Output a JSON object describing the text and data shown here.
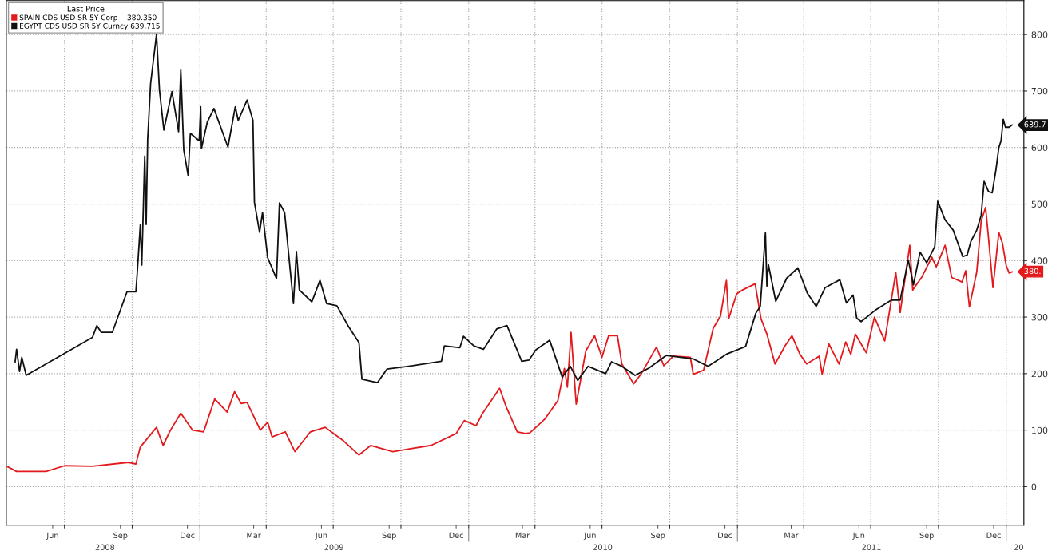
{
  "chart_data": {
    "type": "line",
    "legend_title": "Last Price",
    "legend": "top left",
    "grid": true,
    "line_style": "solid",
    "marker": "none",
    "ylim": [
      -68,
      860
    ],
    "yticks": [
      0,
      100,
      200,
      300,
      400,
      500,
      600,
      700,
      800
    ],
    "xlim": [
      "2008-04-13",
      "2012-01-25"
    ],
    "xticks": [
      {
        "value": "2008-06-15",
        "label": "Jun"
      },
      {
        "value": "2008-09-15",
        "label": "Sep"
      },
      {
        "value": "2008-12-15",
        "label": "Dec"
      },
      {
        "value": "2009-03-15",
        "label": "Mar"
      },
      {
        "value": "2009-06-15",
        "label": "Jun"
      },
      {
        "value": "2009-09-15",
        "label": "Sep"
      },
      {
        "value": "2009-12-15",
        "label": "Dec"
      },
      {
        "value": "2010-03-15",
        "label": "Mar"
      },
      {
        "value": "2010-06-15",
        "label": "Jun"
      },
      {
        "value": "2010-09-15",
        "label": "Sep"
      },
      {
        "value": "2010-12-15",
        "label": "Dec"
      },
      {
        "value": "2011-03-15",
        "label": "Mar"
      },
      {
        "value": "2011-06-15",
        "label": "Jun"
      },
      {
        "value": "2011-09-15",
        "label": "Sep"
      },
      {
        "value": "2011-12-15",
        "label": "Dec"
      },
      {
        "value": "2008-07-01",
        "label": null
      },
      {
        "value": "2008-10-01",
        "label": null
      },
      {
        "value": "2009-01-01",
        "label": null
      },
      {
        "value": "2009-04-01",
        "label": null
      },
      {
        "value": "2009-07-01",
        "label": null
      },
      {
        "value": "2009-10-01",
        "label": null
      },
      {
        "value": "2010-01-01",
        "label": null
      },
      {
        "value": "2010-04-01",
        "label": null
      },
      {
        "value": "2010-07-01",
        "label": null
      },
      {
        "value": "2010-10-01",
        "label": null
      },
      {
        "value": "2011-01-01",
        "label": null
      },
      {
        "value": "2011-04-01",
        "label": null
      },
      {
        "value": "2011-07-01",
        "label": null
      },
      {
        "value": "2011-10-01",
        "label": null
      },
      {
        "value": "2012-01-01",
        "label": null
      }
    ],
    "x2lim": [
      "2008-04-13",
      "2012-01-25"
    ],
    "x2ticks": [
      {
        "value": "2008-08-25",
        "label": "2008"
      },
      {
        "value": "2009-07-02",
        "label": "2009"
      },
      {
        "value": "2010-07-02",
        "label": "2010"
      },
      {
        "value": "2011-07-02",
        "label": "2011"
      },
      {
        "value": "2012-01-18",
        "label": "20"
      },
      {
        "value": "2009-01-01",
        "label": null
      },
      {
        "value": "2010-01-01",
        "label": null
      },
      {
        "value": "2011-01-01",
        "label": null
      },
      {
        "value": "2012-01-01",
        "label": null
      }
    ],
    "annotations": [
      {
        "text": "380.",
        "x": "2012-01-09",
        "y": 380.35
      },
      {
        "text": "639.7",
        "x": "2012-01-09",
        "y": 639.715
      }
    ],
    "series": [
      {
        "name": "SPAIN CDS USD SR 5Y Corp    380.350",
        "color": "#e3191c",
        "x": [
          "2008-04-15",
          "2008-04-27",
          "2008-05-10",
          "2008-06-06",
          "2008-07-01",
          "2008-08-08",
          "2008-09-26",
          "2008-10-06",
          "2008-10-12",
          "2008-11-03",
          "2008-11-12",
          "2008-11-22",
          "2008-12-06",
          "2008-12-22",
          "2009-01-06",
          "2009-01-21",
          "2009-02-07",
          "2009-02-17",
          "2009-02-26",
          "2009-03-06",
          "2009-03-24",
          "2009-04-03",
          "2009-04-09",
          "2009-04-27",
          "2009-05-10",
          "2009-05-31",
          "2009-06-20",
          "2009-07-15",
          "2009-08-05",
          "2009-08-21",
          "2009-09-20",
          "2009-11-11",
          "2009-12-15",
          "2009-12-26",
          "2010-01-11",
          "2010-01-20",
          "2010-02-12",
          "2010-02-21",
          "2010-03-08",
          "2010-03-19",
          "2010-03-25",
          "2010-04-14",
          "2010-05-02",
          "2010-05-11",
          "2010-05-15",
          "2010-05-20",
          "2010-05-27",
          "2010-06-09",
          "2010-06-21",
          "2010-07-01",
          "2010-07-10",
          "2010-07-22",
          "2010-07-28",
          "2010-08-13",
          "2010-08-23",
          "2010-09-13",
          "2010-09-23",
          "2010-10-06",
          "2010-10-29",
          "2010-11-02",
          "2010-11-16",
          "2010-11-29",
          "2010-12-09",
          "2010-12-17",
          "2010-12-20",
          "2010-12-31",
          "2011-01-08",
          "2011-01-25",
          "2011-02-02",
          "2011-02-10",
          "2011-02-21",
          "2011-03-07",
          "2011-03-16",
          "2011-03-27",
          "2011-04-05",
          "2011-04-22",
          "2011-04-26",
          "2011-05-05",
          "2011-05-19",
          "2011-05-28",
          "2011-06-04",
          "2011-06-10",
          "2011-06-25",
          "2011-07-06",
          "2011-07-20",
          "2011-08-04",
          "2011-08-10",
          "2011-08-23",
          "2011-08-27",
          "2011-09-08",
          "2011-09-22",
          "2011-09-28",
          "2011-10-10",
          "2011-10-19",
          "2011-11-02",
          "2011-11-07",
          "2011-11-12",
          "2011-11-22",
          "2011-11-28",
          "2011-12-04",
          "2011-12-08",
          "2011-12-14",
          "2011-12-22",
          "2011-12-27",
          "2012-01-01",
          "2012-01-05",
          "2012-01-09"
        ],
        "values": [
          35,
          27,
          27,
          27,
          37,
          36,
          43,
          40,
          70,
          105,
          73,
          100,
          130,
          100,
          97,
          155,
          132,
          168,
          147,
          149,
          100,
          114,
          88,
          97,
          62,
          97,
          105,
          81,
          56,
          73,
          62,
          73,
          94,
          117,
          108,
          130,
          174,
          141,
          97,
          94,
          95,
          119,
          152,
          209,
          176,
          273,
          146,
          240,
          267,
          229,
          267,
          267,
          217,
          182,
          199,
          247,
          214,
          231,
          229,
          199,
          206,
          280,
          302,
          365,
          297,
          341,
          348,
          359,
          297,
          270,
          217,
          250,
          267,
          234,
          217,
          231,
          199,
          253,
          217,
          256,
          234,
          270,
          237,
          300,
          258,
          379,
          308,
          427,
          348,
          370,
          406,
          389,
          427,
          370,
          362,
          382,
          318,
          380,
          470,
          494,
          440,
          352,
          450,
          430,
          391,
          378,
          380
        ]
      },
      {
        "name": "EGYPT CDS USD SR 5Y Curncy 639.715",
        "color": "#111111",
        "x": [
          "2008-04-25",
          "2008-04-27",
          "2008-05-01",
          "2008-05-04",
          "2008-05-10",
          "2008-08-08",
          "2008-08-14",
          "2008-08-20",
          "2008-09-04",
          "2008-09-24",
          "2008-10-06",
          "2008-10-08",
          "2008-10-12",
          "2008-10-14",
          "2008-10-18",
          "2008-10-20",
          "2008-10-22",
          "2008-10-26",
          "2008-11-03",
          "2008-11-07",
          "2008-11-13",
          "2008-11-24",
          "2008-12-03",
          "2008-12-06",
          "2008-12-10",
          "2008-12-16",
          "2008-12-19",
          "2008-12-31",
          "2009-01-02",
          "2009-01-03",
          "2009-01-11",
          "2009-01-20",
          "2009-02-08",
          "2009-02-18",
          "2009-02-22",
          "2009-03-06",
          "2009-03-14",
          "2009-03-16",
          "2009-03-23",
          "2009-03-27",
          "2009-04-03",
          "2009-04-15",
          "2009-04-19",
          "2009-04-26",
          "2009-05-08",
          "2009-05-12",
          "2009-05-16",
          "2009-06-02",
          "2009-06-13",
          "2009-06-22",
          "2009-07-06",
          "2009-07-21",
          "2009-08-05",
          "2009-08-09",
          "2009-08-30",
          "2009-09-12",
          "2009-10-17",
          "2009-11-25",
          "2009-11-29",
          "2009-12-20",
          "2009-12-25",
          "2010-01-08",
          "2010-01-21",
          "2010-02-08",
          "2010-02-22",
          "2010-03-14",
          "2010-03-24",
          "2010-04-02",
          "2010-04-21",
          "2010-05-08",
          "2010-05-19",
          "2010-05-29",
          "2010-06-12",
          "2010-07-06",
          "2010-07-14",
          "2010-07-28",
          "2010-08-15",
          "2010-09-03",
          "2010-09-26",
          "2010-11-02",
          "2010-11-22",
          "2010-12-18",
          "2011-01-12",
          "2011-01-26",
          "2011-02-01",
          "2011-02-08",
          "2011-02-10",
          "2011-02-12",
          "2011-02-22",
          "2011-03-09",
          "2011-03-24",
          "2011-04-06",
          "2011-04-18",
          "2011-04-30",
          "2011-05-20",
          "2011-05-29",
          "2011-06-07",
          "2011-06-12",
          "2011-06-18",
          "2011-07-07",
          "2011-07-29",
          "2011-08-10",
          "2011-08-21",
          "2011-08-28",
          "2011-09-06",
          "2011-09-15",
          "2011-09-26",
          "2011-09-30",
          "2011-10-10",
          "2011-10-21",
          "2011-11-03",
          "2011-11-09",
          "2011-11-14",
          "2011-11-22",
          "2011-11-28",
          "2011-12-02",
          "2011-12-08",
          "2011-12-13",
          "2011-12-18",
          "2011-12-22",
          "2011-12-25",
          "2011-12-28",
          "2011-12-31",
          "2012-01-05",
          "2012-01-09"
        ],
        "values": [
          221,
          243,
          204,
          229,
          197,
          264,
          285,
          273,
          273,
          345,
          345,
          381,
          463,
          392,
          585,
          464,
          614,
          713,
          800,
          702,
          631,
          699,
          628,
          737,
          596,
          550,
          625,
          612,
          672,
          598,
          645,
          669,
          601,
          672,
          648,
          684,
          648,
          503,
          450,
          485,
          405,
          368,
          502,
          485,
          324,
          416,
          348,
          327,
          365,
          324,
          320,
          285,
          255,
          190,
          184,
          208,
          214,
          222,
          249,
          246,
          266,
          249,
          243,
          279,
          285,
          222,
          224,
          242,
          259,
          194,
          213,
          188,
          213,
          200,
          221,
          213,
          197,
          210,
          232,
          226,
          213,
          235,
          248,
          307,
          319,
          449,
          355,
          393,
          328,
          369,
          387,
          342,
          319,
          352,
          366,
          325,
          339,
          298,
          292,
          312,
          330,
          330,
          401,
          357,
          415,
          396,
          425,
          505,
          472,
          454,
          407,
          410,
          434,
          454,
          480,
          540,
          522,
          520,
          560,
          600,
          612,
          650,
          636,
          636,
          640
        ]
      }
    ]
  }
}
